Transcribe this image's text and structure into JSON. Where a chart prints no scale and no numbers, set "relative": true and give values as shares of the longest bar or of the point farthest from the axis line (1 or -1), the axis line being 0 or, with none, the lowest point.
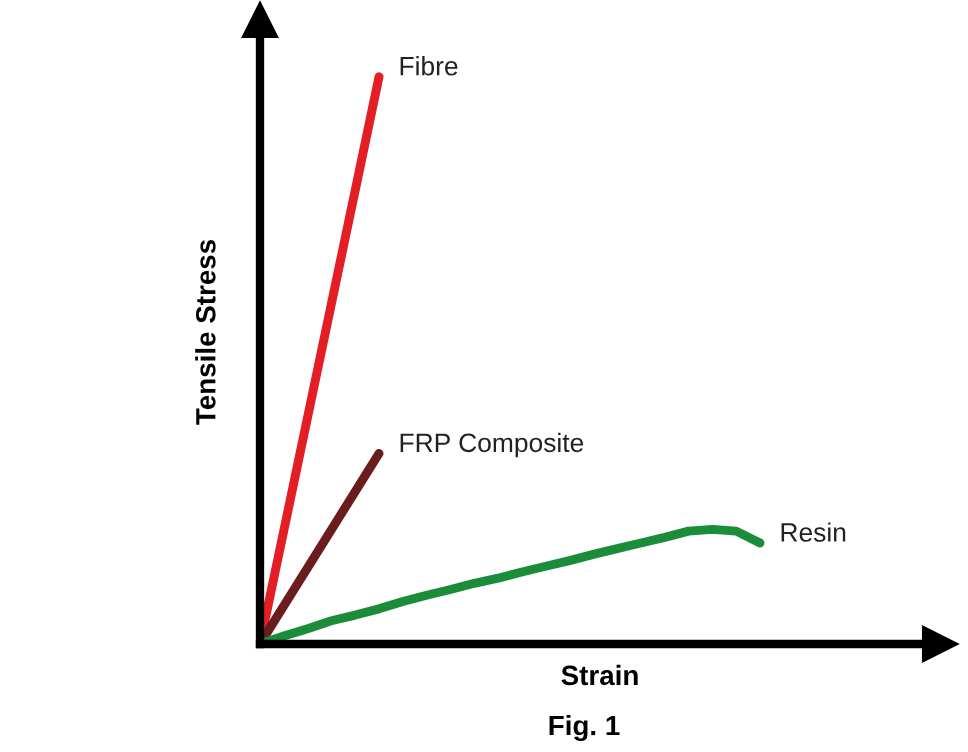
{
  "chart_data": {
    "type": "line",
    "relative": true,
    "xlabel": "Strain",
    "ylabel": "Tensile Stress",
    "annotations": [
      "Fig. 1"
    ],
    "legend": false,
    "marker": "none",
    "line_style": "solid",
    "categories": [
      null,
      null,
      null,
      null,
      null,
      null,
      null,
      null,
      null,
      null,
      null,
      null,
      null,
      null,
      null,
      null,
      null,
      null,
      null,
      null,
      null,
      null
    ],
    "series": [
      {
        "name": "Fibre",
        "color": "#e31e24",
        "values": [
          0,
          null,
          null,
          null,
          null,
          1,
          null,
          null,
          null,
          null,
          null,
          null,
          null,
          null,
          null,
          null,
          null,
          null,
          null,
          null,
          null,
          null
        ]
      },
      {
        "name": "FRP Composite",
        "color": "#6b1d1d",
        "values": [
          0,
          null,
          null,
          null,
          null,
          0.336,
          null,
          null,
          null,
          null,
          null,
          null,
          null,
          null,
          null,
          null,
          null,
          null,
          null,
          null,
          null,
          null
        ]
      },
      {
        "name": "Resin",
        "color": "#1a8c3a",
        "values": [
          0,
          0.014,
          0.027,
          0.041,
          0.051,
          0.062,
          0.075,
          0.086,
          0.096,
          0.107,
          0.116,
          0.127,
          0.137,
          0.147,
          0.158,
          0.168,
          0.178,
          0.188,
          0.199,
          0.202,
          0.199,
          0.178
        ]
      }
    ]
  }
}
